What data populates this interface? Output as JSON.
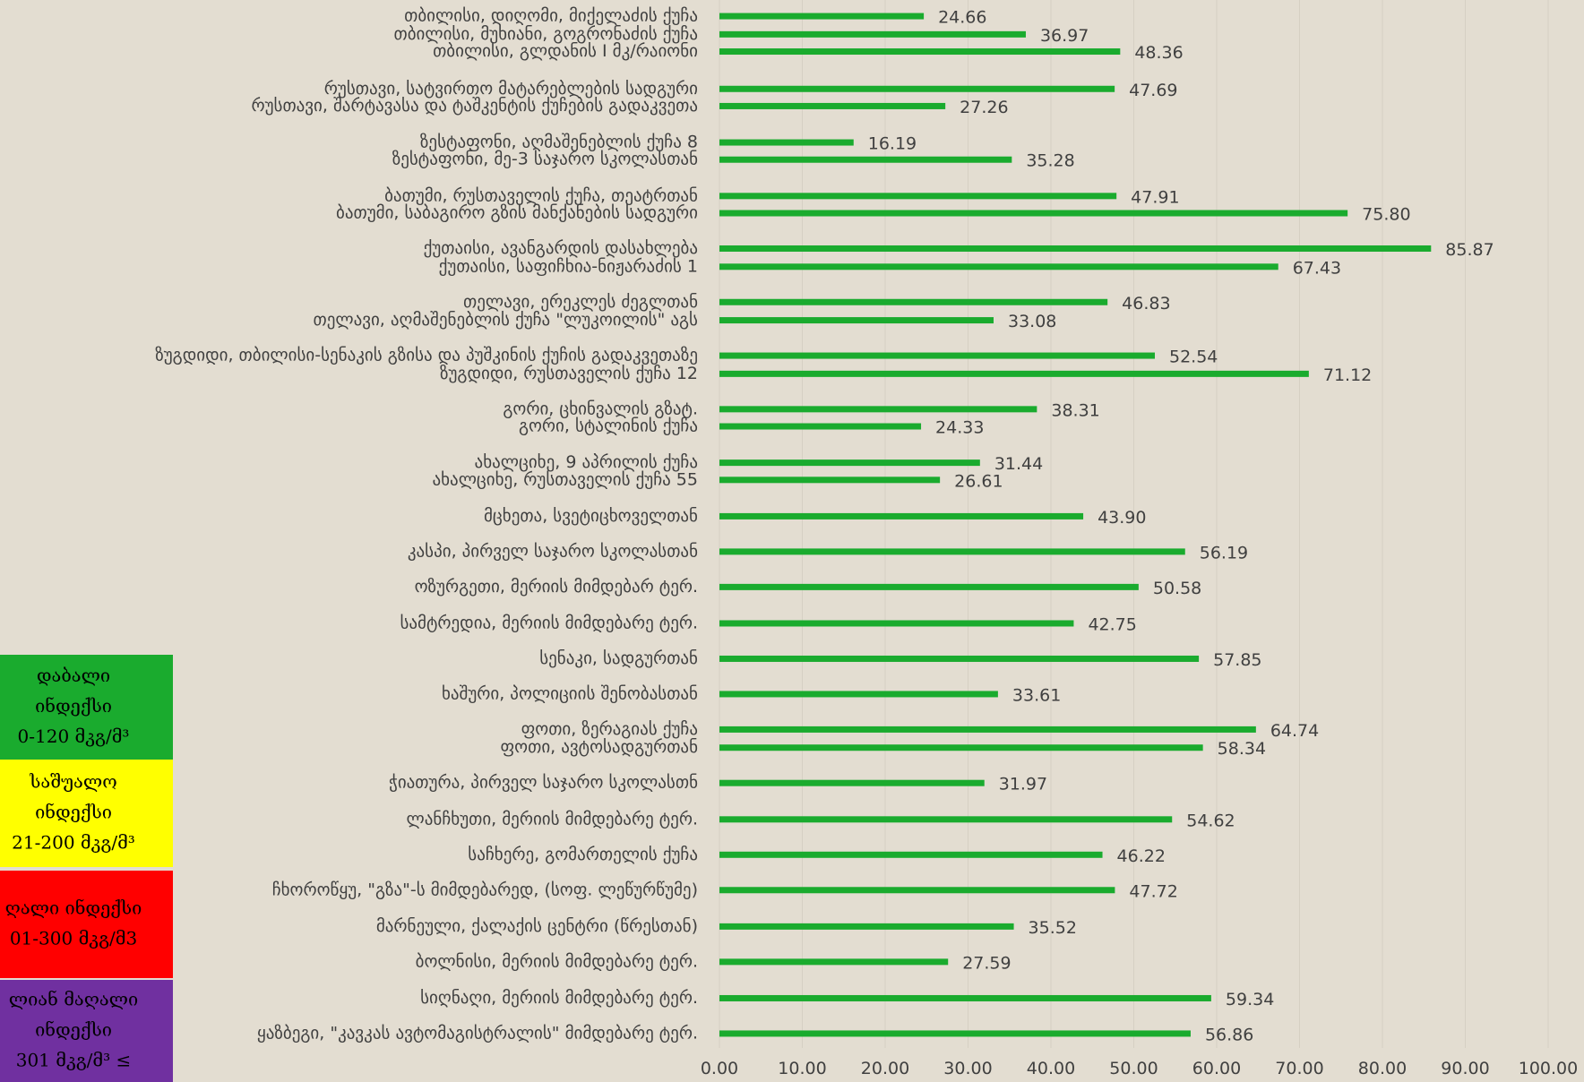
{
  "chart_data": {
    "type": "bar",
    "orientation": "horizontal",
    "categories": [
      "თბილისი, დიღომი, მიქელაძის ქუჩა",
      "თბილისი, მუხიანი, გოგრონაძის ქუჩა",
      "თბილისი, გლდანის I მკ/რაიონი",
      "რუსთავი, სატვირთო მატარებლების სადგური",
      "რუსთავი, შარტავასა და ტაშკენტის ქუჩების გადაკვეთა",
      "ზესტაფონი, აღმაშენებლის ქუჩა 8",
      "ზესტაფონი, მე-3 საჯარო სკოლასთან",
      "ბათუმი, რუსთაველის ქუჩა,  თეატრთან",
      "ბათუმი, საბაგირო გზის მანქანების სადგური",
      "ქუთაისი, ავანგარდის დასახლება",
      "ქუთაისი, საფიჩხია-ნიჟარაძის 1",
      "თელავი, ერეკლეს ძეგლთან",
      "თელავი, აღმაშენებლის ქუჩა \"ლუკოილის\" აგს",
      "ზუგდიდი, თბილისი-სენაკის გზისა და პუშკინის ქუჩის გადაკვეთაზე",
      "ზუგდიდი, რუსთაველის ქუჩა 12",
      "გორი, ცხინვალის გზატ.",
      "გორი, სტალინის ქუჩა",
      "ახალციხე, 9 აპრილის ქუჩა",
      "ახალციხე, რუსთაველის ქუჩა 55",
      "მცხეთა, სვეტიცხოველთან",
      "კასპი, პირველ საჯარო სკოლასთან",
      "ოზურგეთი, მერიის მიმდებარ ტერ.",
      "სამტრედია, მერიის მიმდებარე ტერ.",
      "სენაკი, სადგურთან",
      "ხაშური, პოლიციის შენობასთან",
      "ფოთი, ზერაგიას ქუჩა",
      "ფოთი, ავტოსადგურთან",
      "ჭიათურა, პირველ საჯარო სკოლასთნ",
      "ლანჩხუთი, მერიის მიმდებარე ტერ.",
      "საჩხერე, გომართელის ქუჩა",
      "ჩხოროწყუ, \"გზა\"-ს მიმდებარედ, (სოფ. ლეწურწუმე)",
      "მარნეული, ქალაქის ცენტრი (წრესთან)",
      "ბოლნისი, მერიის მიმდებარე ტერ.",
      "სიღნაღი, მერიის მიმდებარე ტერ.",
      "ყაზბეგი, \"კავკას ავტომაგისტრალის\" მიმდებარე ტერ."
    ],
    "values": [
      24.66,
      36.97,
      48.36,
      47.69,
      27.26,
      16.19,
      35.28,
      47.91,
      75.8,
      85.87,
      67.43,
      46.83,
      33.08,
      52.54,
      71.12,
      38.31,
      24.33,
      31.44,
      26.61,
      43.9,
      56.19,
      50.58,
      42.75,
      57.85,
      33.61,
      64.74,
      58.34,
      31.97,
      54.62,
      46.22,
      47.72,
      35.52,
      27.59,
      59.34,
      56.86
    ],
    "value_labels": [
      "24.66",
      "36.97",
      "48.36",
      "47.69",
      "27.26",
      "16.19",
      "35.28",
      "47.91",
      "75.80",
      "85.87",
      "67.43",
      "46.83",
      "33.08",
      "52.54",
      "71.12",
      "38.31",
      "24.33",
      "31.44",
      "26.61",
      "43.90",
      "56.19",
      "50.58",
      "42.75",
      "57.85",
      "33.61",
      "64.74",
      "58.34",
      "31.97",
      "54.62",
      "46.22",
      "47.72",
      "35.52",
      "27.59",
      "59.34",
      "56.86"
    ],
    "color": "#1aab2e",
    "xlim": [
      0,
      100
    ],
    "xticks": [
      {
        "value": 0,
        "label": "0.00"
      },
      {
        "value": 10,
        "label": "10.00"
      },
      {
        "value": 20,
        "label": "20.00"
      },
      {
        "value": 30,
        "label": "30.00"
      },
      {
        "value": 40,
        "label": "40.00"
      },
      {
        "value": 50,
        "label": "50.00"
      },
      {
        "value": 60,
        "label": "60.00"
      },
      {
        "value": 70,
        "label": "70.00"
      },
      {
        "value": 80,
        "label": "80.00"
      },
      {
        "value": 90,
        "label": "90.00"
      },
      {
        "value": 100,
        "label": "100.00"
      }
    ],
    "grid": true,
    "legend": [
      {
        "color": "#1aab2e",
        "lines": [
          "დაბალი",
          "ინდექსი",
          "0-120 მკგ/მ³"
        ]
      },
      {
        "color": "#ffff00",
        "lines": [
          "საშუალო",
          "ინდექსი",
          "21-200 მკგ/მ³"
        ]
      },
      {
        "color": "#ff0000",
        "lines": [
          "ღალი ინდექსი",
          "01-300 მკგ/მ3"
        ]
      },
      {
        "color": "#7030a0",
        "lines": [
          "ლიან მაღალი",
          "ინდექსი",
          "301 მკგ/მ³ ≤"
        ]
      }
    ]
  }
}
